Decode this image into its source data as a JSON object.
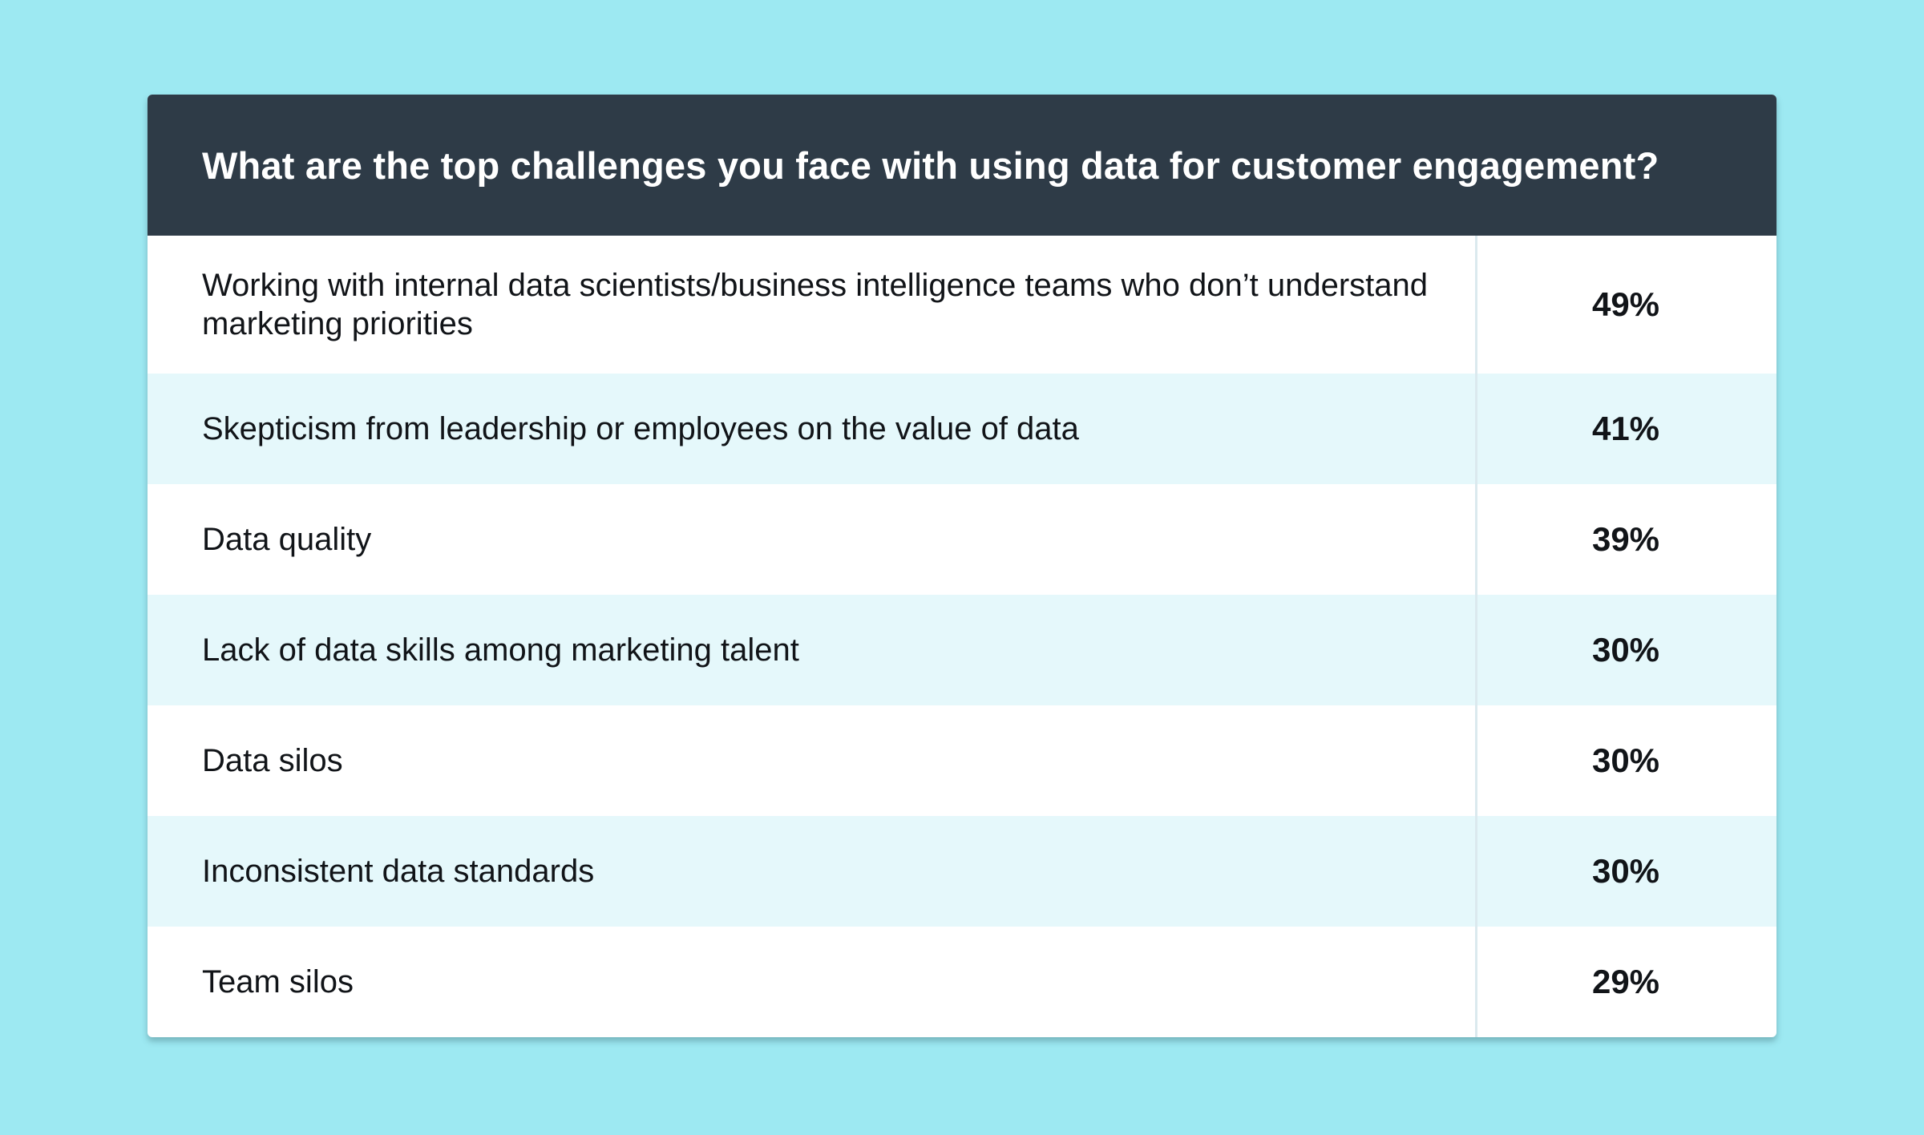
{
  "chart_data": {
    "type": "table",
    "title": "What are the top challenges you face with using data for customer engagement?",
    "rows": [
      {
        "label": "Working with internal data scientists/business intelligence teams who don’t understand marketing priorities",
        "value": "49%"
      },
      {
        "label": "Skepticism from leadership or employees on the value of data",
        "value": "41%"
      },
      {
        "label": "Data quality",
        "value": "39%"
      },
      {
        "label": "Lack of data skills among marketing talent",
        "value": "30%"
      },
      {
        "label": "Data silos",
        "value": "30%"
      },
      {
        "label": "Inconsistent data standards",
        "value": "30%"
      },
      {
        "label": "Team silos",
        "value": "29%"
      }
    ]
  },
  "colors": {
    "background": "#9de9f2",
    "header": "#2e3b47",
    "row_alt": "#e5f8fb"
  }
}
